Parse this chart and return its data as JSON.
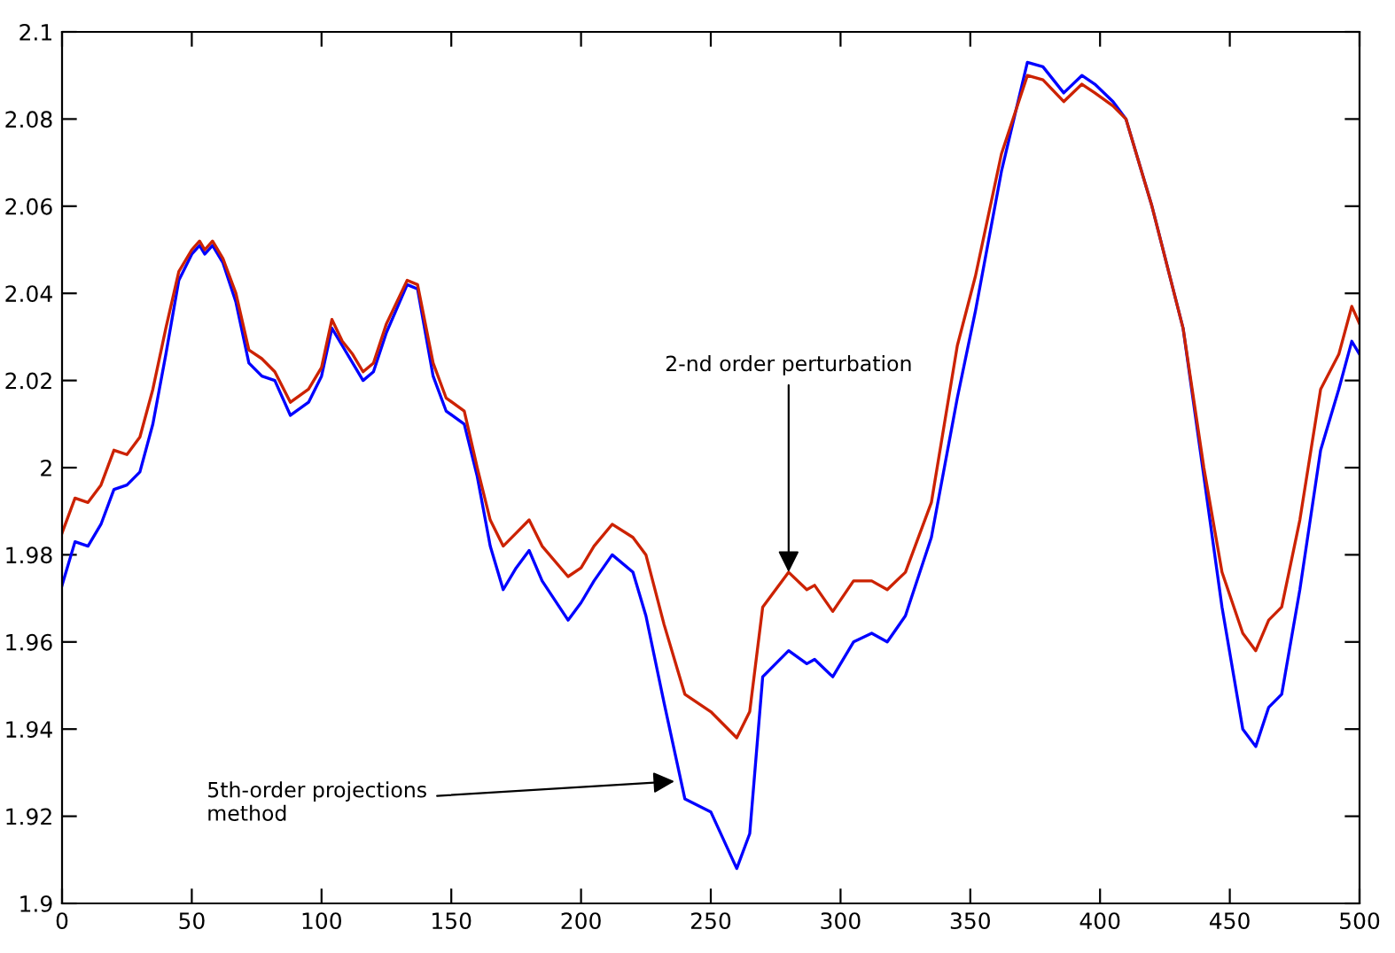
{
  "chart_data": {
    "type": "line",
    "x": [
      0,
      5,
      10,
      15,
      20,
      25,
      30,
      35,
      40,
      45,
      50,
      53,
      55,
      58,
      62,
      67,
      72,
      77,
      82,
      88,
      95,
      100,
      104,
      108,
      112,
      116,
      120,
      125,
      133,
      137,
      143,
      148,
      155,
      160,
      165,
      170,
      175,
      180,
      185,
      195,
      200,
      205,
      212,
      220,
      225,
      232,
      240,
      250,
      260,
      265,
      270,
      280,
      287,
      290,
      297,
      305,
      312,
      318,
      325,
      335,
      345,
      352,
      362,
      372,
      378,
      386,
      393,
      398,
      405,
      410,
      420,
      432,
      440,
      447,
      455,
      460,
      465,
      470,
      477,
      485,
      492,
      497,
      500
    ],
    "series": [
      {
        "color": "#cc2200",
        "values": [
          1.985,
          1.993,
          1.992,
          1.996,
          2.004,
          2.003,
          2.007,
          2.018,
          2.032,
          2.045,
          2.05,
          2.052,
          2.05,
          2.052,
          2.048,
          2.04,
          2.027,
          2.025,
          2.022,
          2.015,
          2.018,
          2.023,
          2.034,
          2.029,
          2.026,
          2.022,
          2.024,
          2.033,
          2.043,
          2.042,
          2.024,
          2.016,
          2.013,
          2.0,
          1.988,
          1.982,
          1.985,
          1.988,
          1.982,
          1.975,
          1.977,
          1.982,
          1.987,
          1.984,
          1.98,
          1.964,
          1.948,
          1.944,
          1.938,
          1.944,
          1.968,
          1.976,
          1.972,
          1.973,
          1.967,
          1.974,
          1.974,
          1.972,
          1.976,
          1.992,
          2.028,
          2.044,
          2.072,
          2.09,
          2.089,
          2.084,
          2.088,
          2.086,
          2.083,
          2.08,
          2.06,
          2.032,
          2.0,
          1.976,
          1.962,
          1.958,
          1.965,
          1.968,
          1.988,
          2.018,
          2.026,
          2.037,
          2.033
        ]
      },
      {
        "color": "#0000ff",
        "values": [
          1.973,
          1.983,
          1.982,
          1.987,
          1.995,
          1.996,
          1.999,
          2.01,
          2.026,
          2.043,
          2.049,
          2.051,
          2.049,
          2.051,
          2.047,
          2.038,
          2.024,
          2.021,
          2.02,
          2.012,
          2.015,
          2.021,
          2.032,
          2.028,
          2.024,
          2.02,
          2.022,
          2.031,
          2.042,
          2.041,
          2.021,
          2.013,
          2.01,
          1.998,
          1.982,
          1.972,
          1.977,
          1.981,
          1.974,
          1.965,
          1.969,
          1.974,
          1.98,
          1.976,
          1.966,
          1.946,
          1.924,
          1.921,
          1.908,
          1.916,
          1.952,
          1.958,
          1.955,
          1.956,
          1.952,
          1.96,
          1.962,
          1.96,
          1.966,
          1.984,
          2.016,
          2.036,
          2.068,
          2.093,
          2.092,
          2.086,
          2.09,
          2.088,
          2.084,
          2.08,
          2.06,
          2.032,
          1.998,
          1.968,
          1.94,
          1.936,
          1.945,
          1.948,
          1.972,
          2.004,
          2.018,
          2.029,
          2.026
        ]
      }
    ],
    "xlim": [
      0,
      500
    ],
    "ylim": [
      1.9,
      2.1
    ],
    "xticks": [
      0,
      50,
      100,
      150,
      200,
      250,
      300,
      350,
      400,
      450,
      500
    ],
    "yticks": [
      1.9,
      1.92,
      1.94,
      1.96,
      1.98,
      2,
      2.02,
      2.04,
      2.06,
      2.08,
      2.1
    ],
    "grid": false,
    "legend": false,
    "marker": "none",
    "line_style": "solid",
    "annotations": [
      {
        "text": "2-nd order perturbation",
        "x": 280,
        "y": 1.976
      },
      {
        "text": "5th-order projections\nmethod",
        "x": 236,
        "y": 1.928
      }
    ]
  }
}
